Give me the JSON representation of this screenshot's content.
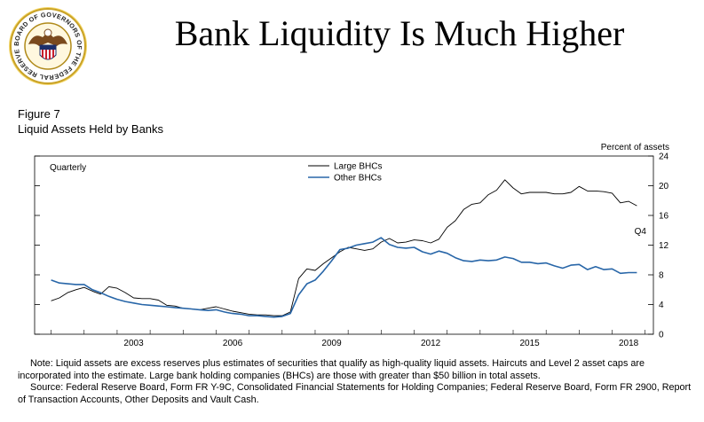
{
  "header": {
    "title": "Bank Liquidity Is Much Higher",
    "seal_text": "BOARD OF GOVERNORS OF THE FEDERAL RESERVE SYSTEM"
  },
  "figure": {
    "number": "Figure 7",
    "subtitle": "Liquid Assets Held by Banks"
  },
  "chart_data": {
    "type": "line",
    "title": "Liquid Assets Held by Banks",
    "ylabel": "Percent of assets",
    "frequency_label": "Quarterly",
    "end_label": "Q4",
    "xlim": [
      2000.5,
      2019.25
    ],
    "ylim": [
      0,
      24
    ],
    "yticks": [
      0,
      4,
      8,
      12,
      16,
      20,
      24
    ],
    "xticks": [
      2003,
      2006,
      2009,
      2012,
      2015,
      2018
    ],
    "legend_position": "top-center",
    "series": [
      {
        "name": "Large BHCs",
        "color": "#000000",
        "x": [
          2001.0,
          2001.25,
          2001.5,
          2001.75,
          2002.0,
          2002.25,
          2002.5,
          2002.75,
          2003.0,
          2003.25,
          2003.5,
          2003.75,
          2004.0,
          2004.25,
          2004.5,
          2004.75,
          2005.0,
          2005.25,
          2005.5,
          2005.75,
          2006.0,
          2006.25,
          2006.5,
          2006.75,
          2007.0,
          2007.25,
          2007.5,
          2007.75,
          2008.0,
          2008.25,
          2008.5,
          2008.75,
          2009.0,
          2009.25,
          2009.5,
          2009.75,
          2010.0,
          2010.25,
          2010.5,
          2010.75,
          2011.0,
          2011.25,
          2011.5,
          2011.75,
          2012.0,
          2012.25,
          2012.5,
          2012.75,
          2013.0,
          2013.25,
          2013.5,
          2013.75,
          2014.0,
          2014.25,
          2014.5,
          2014.75,
          2015.0,
          2015.25,
          2015.5,
          2015.75,
          2016.0,
          2016.25,
          2016.5,
          2016.75,
          2017.0,
          2017.25,
          2017.5,
          2017.75,
          2018.0,
          2018.25,
          2018.5,
          2018.75
        ],
        "y": [
          4.5,
          4.9,
          5.6,
          6.0,
          6.3,
          5.8,
          5.4,
          6.4,
          6.2,
          5.6,
          4.9,
          4.8,
          4.8,
          4.6,
          3.9,
          3.8,
          3.5,
          3.4,
          3.3,
          3.5,
          3.7,
          3.4,
          3.1,
          2.9,
          2.7,
          2.6,
          2.6,
          2.5,
          2.5,
          3.0,
          7.5,
          8.8,
          8.6,
          9.5,
          10.3,
          11.1,
          11.7,
          11.5,
          11.3,
          11.5,
          12.4,
          12.9,
          12.3,
          12.4,
          12.7,
          12.6,
          12.3,
          12.8,
          14.4,
          15.3,
          16.8,
          17.5,
          17.7,
          18.8,
          19.4,
          20.8,
          19.7,
          18.9,
          19.1,
          19.1,
          19.1,
          18.9,
          18.9,
          19.1,
          19.9,
          19.3,
          19.3,
          19.2,
          19.0,
          17.7,
          17.9,
          17.3
        ]
      },
      {
        "name": "Other BHCs",
        "color": "#2866a8",
        "x": [
          2001.0,
          2001.25,
          2001.5,
          2001.75,
          2002.0,
          2002.25,
          2002.5,
          2002.75,
          2003.0,
          2003.25,
          2003.5,
          2003.75,
          2004.0,
          2004.25,
          2004.5,
          2004.75,
          2005.0,
          2005.25,
          2005.5,
          2005.75,
          2006.0,
          2006.25,
          2006.5,
          2006.75,
          2007.0,
          2007.25,
          2007.5,
          2007.75,
          2008.0,
          2008.25,
          2008.5,
          2008.75,
          2009.0,
          2009.25,
          2009.5,
          2009.75,
          2010.0,
          2010.25,
          2010.5,
          2010.75,
          2011.0,
          2011.25,
          2011.5,
          2011.75,
          2012.0,
          2012.25,
          2012.5,
          2012.75,
          2013.0,
          2013.25,
          2013.5,
          2013.75,
          2014.0,
          2014.25,
          2014.5,
          2014.75,
          2015.0,
          2015.25,
          2015.5,
          2015.75,
          2016.0,
          2016.25,
          2016.5,
          2016.75,
          2017.0,
          2017.25,
          2017.5,
          2017.75,
          2018.0,
          2018.25,
          2018.5,
          2018.75
        ],
        "y": [
          7.3,
          6.9,
          6.8,
          6.7,
          6.7,
          6.0,
          5.6,
          5.1,
          4.7,
          4.4,
          4.2,
          4.0,
          3.9,
          3.8,
          3.7,
          3.6,
          3.5,
          3.4,
          3.3,
          3.2,
          3.3,
          3.0,
          2.8,
          2.7,
          2.5,
          2.5,
          2.4,
          2.3,
          2.4,
          2.8,
          5.3,
          6.8,
          7.3,
          8.5,
          9.9,
          11.4,
          11.6,
          12.0,
          12.2,
          12.4,
          13.0,
          12.1,
          11.7,
          11.6,
          11.7,
          11.1,
          10.8,
          11.2,
          10.9,
          10.3,
          9.9,
          9.8,
          10.0,
          9.9,
          10.0,
          10.4,
          10.2,
          9.7,
          9.7,
          9.5,
          9.6,
          9.2,
          8.9,
          9.3,
          9.4,
          8.7,
          9.1,
          8.7,
          8.8,
          8.2,
          8.3,
          8.3
        ]
      }
    ]
  },
  "notes": {
    "note": "Note: Liquid assets are excess reserves plus estimates of securities that qualify as high-quality liquid assets. Haircuts and Level 2 asset caps are incorporated into the estimate. Large bank holding companies (BHCs) are those with greater than $50 billion in total assets.",
    "source": "Source: Federal Reserve Board, Form FR Y-9C, Consolidated Financial Statements for Holding Companies; Federal Reserve Board, Form FR 2900, Report of Transaction Accounts, Other Deposits and Vault Cash."
  }
}
